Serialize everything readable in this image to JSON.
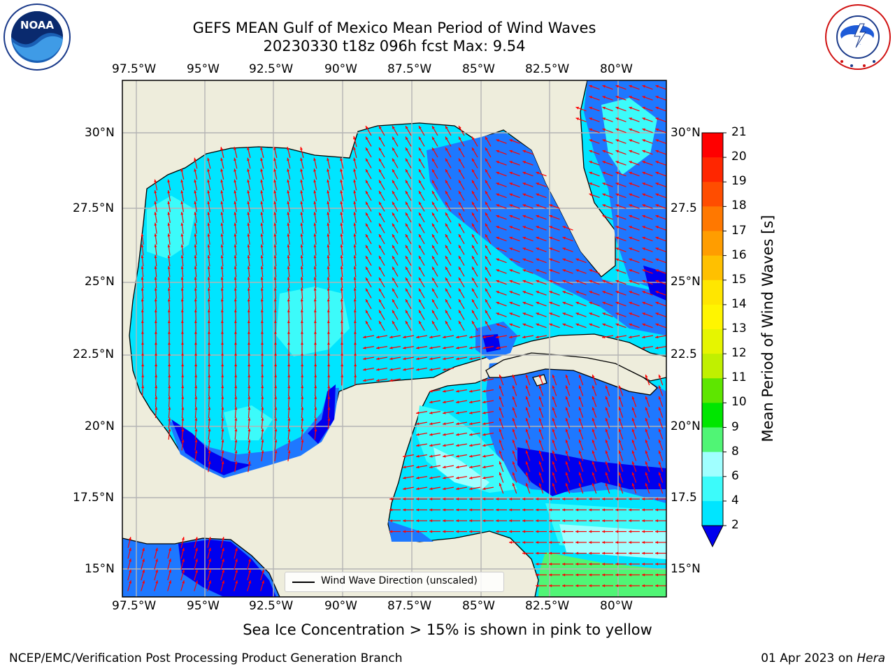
{
  "title": {
    "line1": "GEFS MEAN Gulf of Mexico Mean Period of Wind Waves",
    "line2": "20230330 t18z 096h fcst   Max: 9.54"
  },
  "logos": {
    "left": {
      "icon": "noaa-logo",
      "text": "NOAA"
    },
    "right": {
      "icon": "nws-logo",
      "text": "NATIONAL WEATHER SERVICE"
    }
  },
  "map": {
    "projection": "plate-carree",
    "lon_range": [
      -98,
      -78.25
    ],
    "lat_range": [
      14,
      31.6
    ],
    "lon_ticks": [
      "97.5°W",
      "95°W",
      "92.5°W",
      "90°W",
      "87.5°W",
      "85°W",
      "82.5°W",
      "80°W"
    ],
    "lat_ticks": [
      "30°N",
      "27.5°N",
      "25°N",
      "22.5°N",
      "20°N",
      "17.5°N",
      "15°N"
    ],
    "lat_ticks_right": [
      "30°N",
      "27.5",
      "25°N",
      "22.5",
      "20°N",
      "17.5",
      "15°N"
    ],
    "colors": {
      "land": "#eeeddc",
      "gridline": "#b4b4b4",
      "coast": "#000000",
      "arrow": "#ff0000",
      "level_0_2": "#0000ee",
      "level_2_4": "#1e78ff",
      "level_4_6": "#00e5ff",
      "level_6_8": "#3cfbfa",
      "level_8_9": "#a0ffff",
      "level_9_10": "#50f575"
    },
    "legend": {
      "label": "Wind Wave Direction (unscaled)"
    }
  },
  "colorbar": {
    "label": "Mean Period of Wind Waves [s]",
    "levels": [
      {
        "value": "21",
        "color": "#ff0000"
      },
      {
        "value": "20",
        "color": "#ff2600"
      },
      {
        "value": "19",
        "color": "#ff4d00"
      },
      {
        "value": "18",
        "color": "#ff7800"
      },
      {
        "value": "17",
        "color": "#ff9d00"
      },
      {
        "value": "16",
        "color": "#ffc000"
      },
      {
        "value": "15",
        "color": "#ffe600"
      },
      {
        "value": "14",
        "color": "#fff500"
      },
      {
        "value": "13",
        "color": "#e6f500"
      },
      {
        "value": "12",
        "color": "#c0f000"
      },
      {
        "value": "11",
        "color": "#5ee600"
      },
      {
        "value": "10",
        "color": "#00e600"
      },
      {
        "value": "9",
        "color": "#50f575"
      },
      {
        "value": "8",
        "color": "#a0ffff"
      },
      {
        "value": "6",
        "color": "#3cfbfa"
      },
      {
        "value": "4",
        "color": "#00e5ff"
      },
      {
        "value": "2",
        "color": "#1e78ff"
      }
    ],
    "tick_labels": [
      "21",
      "20",
      "19",
      "18",
      "17",
      "16",
      "15",
      "14",
      "13",
      "12",
      "11",
      "10",
      "9",
      "8",
      "6",
      "4",
      "2"
    ],
    "extend_color": "#0000ee"
  },
  "caption": "Sea Ice Concentration > 15% is shown in pink to yellow",
  "footer": {
    "left": "NCEP/EMC/Verification Post Processing Product Generation Branch",
    "right_prefix": "01 Apr 2023 on ",
    "right_host": "Hera"
  }
}
